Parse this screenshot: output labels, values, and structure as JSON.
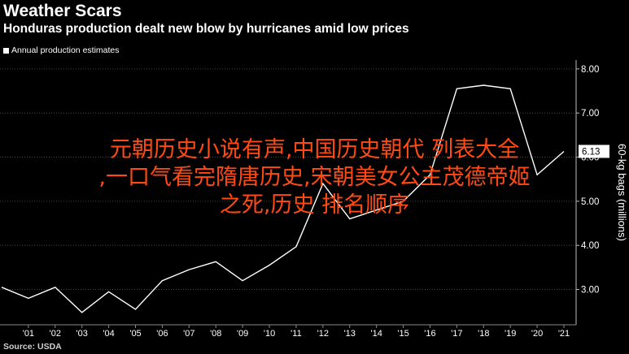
{
  "header": {
    "title": "Weather Scars",
    "subtitle": "Honduras production dealt new blow by hurricanes amid low prices"
  },
  "legend": {
    "label": "Annual production estimates"
  },
  "source": "Source: USDA",
  "overlay": {
    "lines": [
      "元朝历史小说有声,中国历史朝代  列表大全",
      ",一口气看完隋唐历史,宋朝美女公主茂德帝姬",
      "之死,历史  排名顺序"
    ]
  },
  "colors": {
    "background": "#000000",
    "line": "#ffffff",
    "grid": "#444444",
    "overlay_text": "#ff4a14"
  },
  "chart_data": {
    "type": "line",
    "title": "Weather Scars",
    "subtitle": "Honduras production dealt new blow by hurricanes amid low prices",
    "ylabel": "60-kg bags (millions)",
    "x": [
      2000,
      2001,
      2002,
      2003,
      2004,
      2005,
      2006,
      2007,
      2008,
      2009,
      2010,
      2011,
      2012,
      2013,
      2014,
      2015,
      2016,
      2017,
      2018,
      2019,
      2020,
      2021
    ],
    "x_tick_labels": [
      "'01",
      "'02",
      "'03",
      "'04",
      "'05",
      "'06",
      "'07",
      "'08",
      "'09",
      "'10",
      "'11",
      "'12",
      "'13",
      "'14",
      "'15",
      "'16",
      "'17",
      "'18",
      "'19",
      "'20",
      "'21"
    ],
    "y_ticks": [
      "3.00",
      "4.00",
      "5.00",
      "6.00",
      "7.00",
      "8.00"
    ],
    "ylim": [
      2.2,
      8.2
    ],
    "series": [
      {
        "values": [
          3.05,
          2.8,
          3.05,
          2.48,
          2.95,
          2.55,
          3.2,
          3.45,
          3.63,
          3.2,
          3.55,
          3.97,
          5.4,
          4.6,
          4.8,
          5.0,
          5.6,
          7.55,
          7.63,
          7.55,
          5.6,
          6.13
        ]
      }
    ],
    "last_value_label": "6.13",
    "grid": true,
    "legend_position": "top-left"
  }
}
